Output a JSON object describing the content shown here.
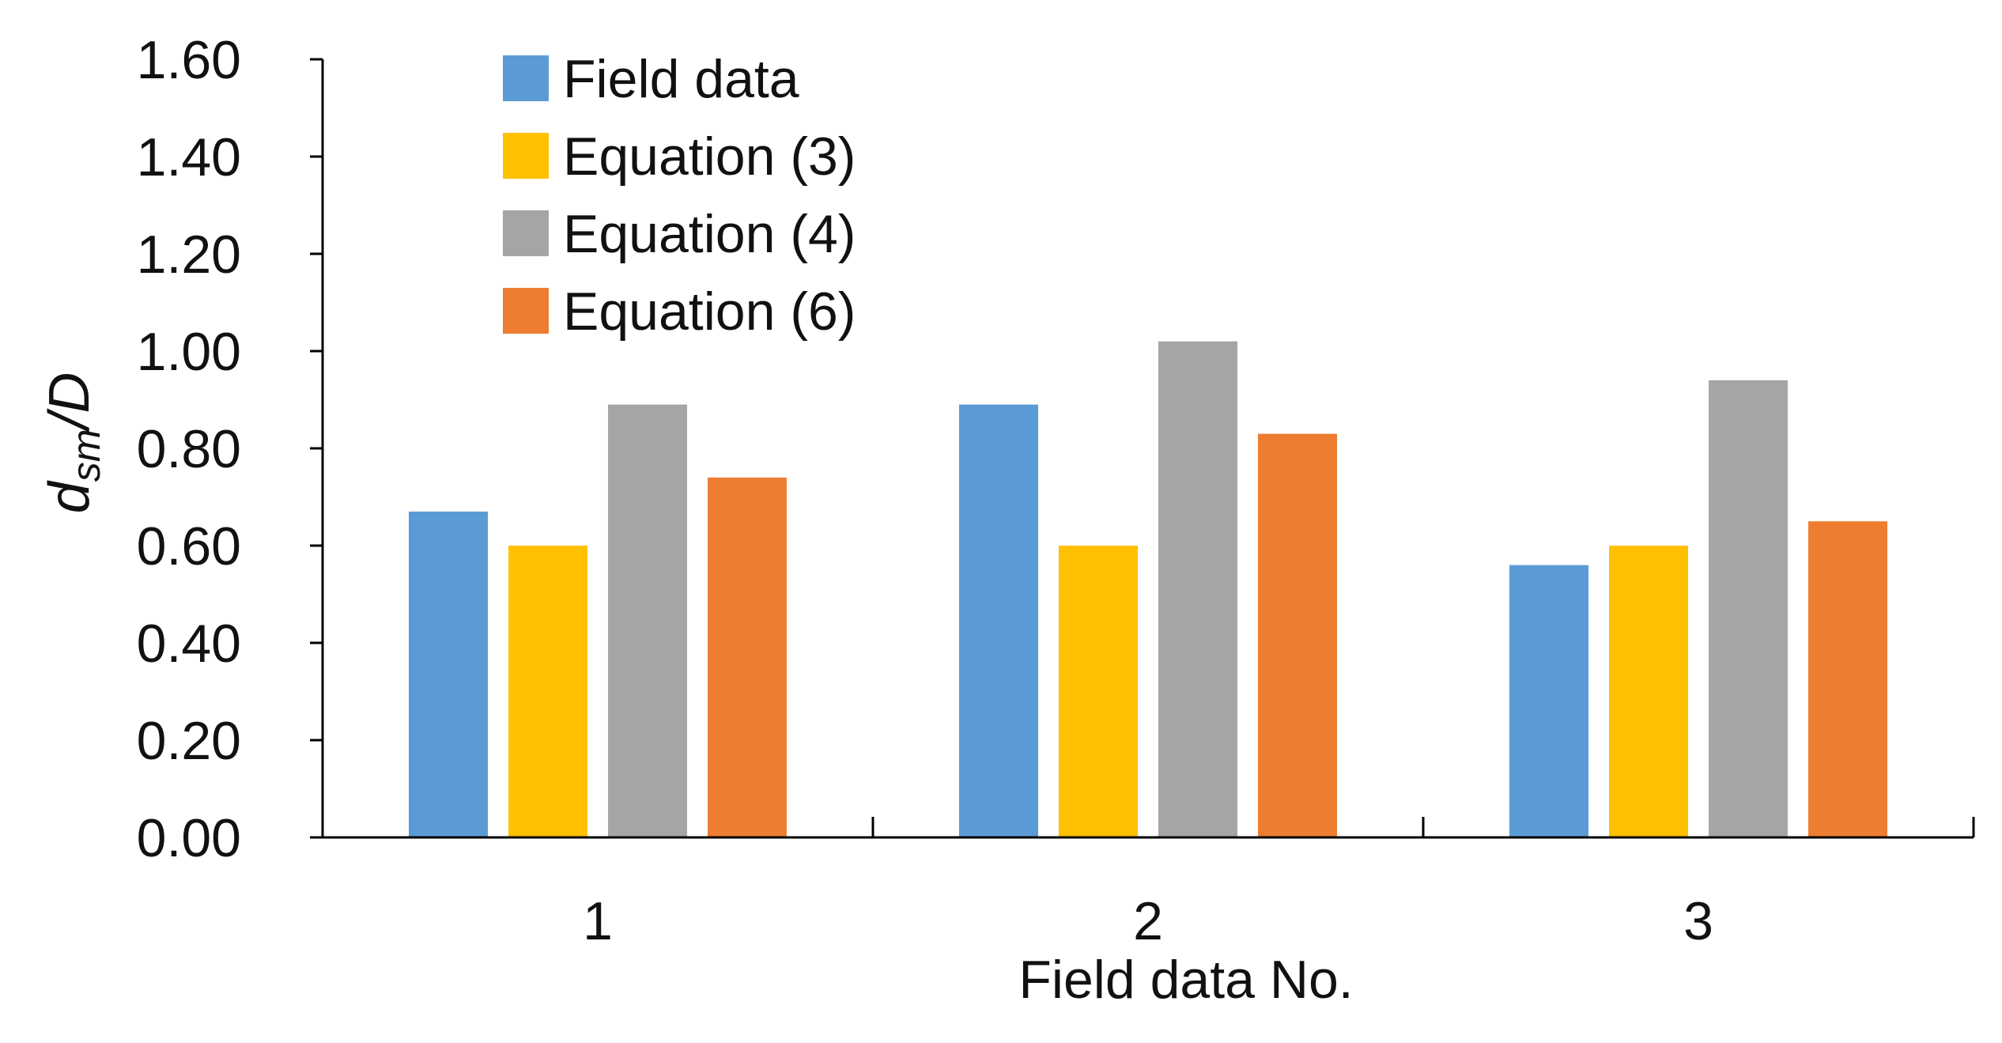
{
  "chart_data": {
    "type": "bar",
    "title": "",
    "xlabel": "Field data No.",
    "ylabel_main": "d",
    "ylabel_sub": "sm",
    "ylabel_tail": "/D",
    "categories": [
      "1",
      "2",
      "3"
    ],
    "ylim": [
      0,
      1.6
    ],
    "yticks": [
      "0.00",
      "0.20",
      "0.40",
      "0.60",
      "0.80",
      "1.00",
      "1.20",
      "1.40",
      "1.60"
    ],
    "ytick_values": [
      0,
      0.2,
      0.4,
      0.6,
      0.8,
      1.0,
      1.2,
      1.4,
      1.6
    ],
    "grid": false,
    "legend_position": "top-left",
    "series": [
      {
        "name": "Field data",
        "color": "#5B9BD5",
        "values": [
          0.67,
          0.89,
          0.56
        ]
      },
      {
        "name": "Equation (3)",
        "color": "#FFC000",
        "values": [
          0.6,
          0.6,
          0.6
        ]
      },
      {
        "name": "Equation (4)",
        "color": "#A5A5A5",
        "values": [
          0.89,
          1.02,
          0.94
        ]
      },
      {
        "name": "Equation (6)",
        "color": "#ED7D31",
        "values": [
          0.74,
          0.83,
          0.65
        ]
      }
    ]
  }
}
